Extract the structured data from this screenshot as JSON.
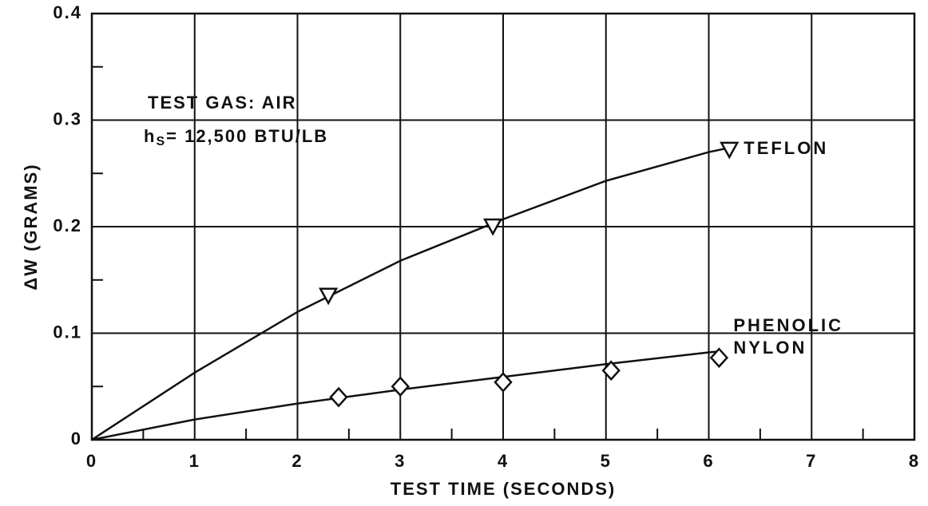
{
  "chart_data": {
    "type": "scatter",
    "xlabel": "TEST TIME (SECONDS)",
    "ylabel": "ΔW (GRAMS)",
    "xlim": [
      0,
      8
    ],
    "ylim": [
      0,
      0.4
    ],
    "xticks": [
      0,
      1,
      2,
      3,
      4,
      5,
      6,
      7,
      8
    ],
    "yticks": [
      0,
      0.1,
      0.2,
      0.3,
      0.4
    ],
    "xminorticks": [
      0.5,
      1.5,
      2.5,
      3.5,
      4.5,
      5.5,
      6.5,
      7.5
    ],
    "yminorticks": [
      0.05,
      0.15,
      0.25,
      0.35
    ],
    "grid": true,
    "color": "#111111",
    "annotations": {
      "gas": "TEST GAS: AIR",
      "enthalpy": {
        "symbol": "h",
        "subscript": "S",
        "text": "= 12,500 BTU/LB"
      }
    },
    "series": [
      {
        "name": "TEFLON",
        "marker": "triangle-down",
        "x": [
          2.3,
          3.9,
          6.2
        ],
        "values": [
          0.135,
          0.2,
          0.272
        ],
        "curve_x": [
          0,
          1,
          2,
          3,
          4,
          5,
          6,
          6.2
        ],
        "curve_y": [
          0,
          0.063,
          0.12,
          0.168,
          0.207,
          0.243,
          0.27,
          0.274
        ]
      },
      {
        "name": "PHENOLIC NYLON",
        "marker": "diamond",
        "x": [
          2.4,
          3.0,
          4.0,
          5.05,
          6.1
        ],
        "values": [
          0.04,
          0.05,
          0.054,
          0.065,
          0.077
        ],
        "curve_x": [
          0,
          1,
          2,
          3,
          4,
          5,
          6,
          6.1
        ],
        "curve_y": [
          0,
          0.019,
          0.034,
          0.047,
          0.059,
          0.071,
          0.082,
          0.083
        ]
      }
    ]
  }
}
